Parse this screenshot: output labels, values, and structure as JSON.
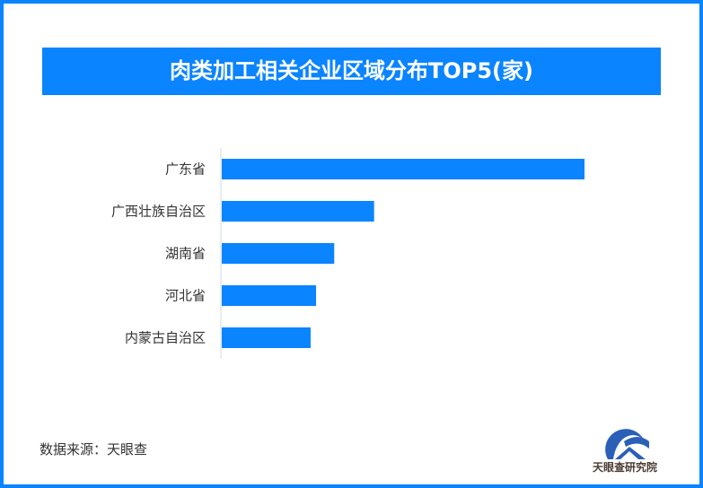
{
  "chart_data": {
    "type": "bar",
    "orientation": "horizontal",
    "title": "肉类加工相关企业区域分布TOP5(家)",
    "categories": [
      "广东省",
      "广西壮族自治区",
      "湖南省",
      "河北省",
      "内蒙古自治区"
    ],
    "values": [
      100,
      42,
      31,
      26,
      24.5
    ],
    "bar_color": "#0a84ff",
    "grid": false,
    "xlim": [
      0,
      100
    ]
  },
  "source": "数据来源：天眼查",
  "logo_text": "天眼查研究院",
  "colors": {
    "accent": "#0a84ff"
  }
}
